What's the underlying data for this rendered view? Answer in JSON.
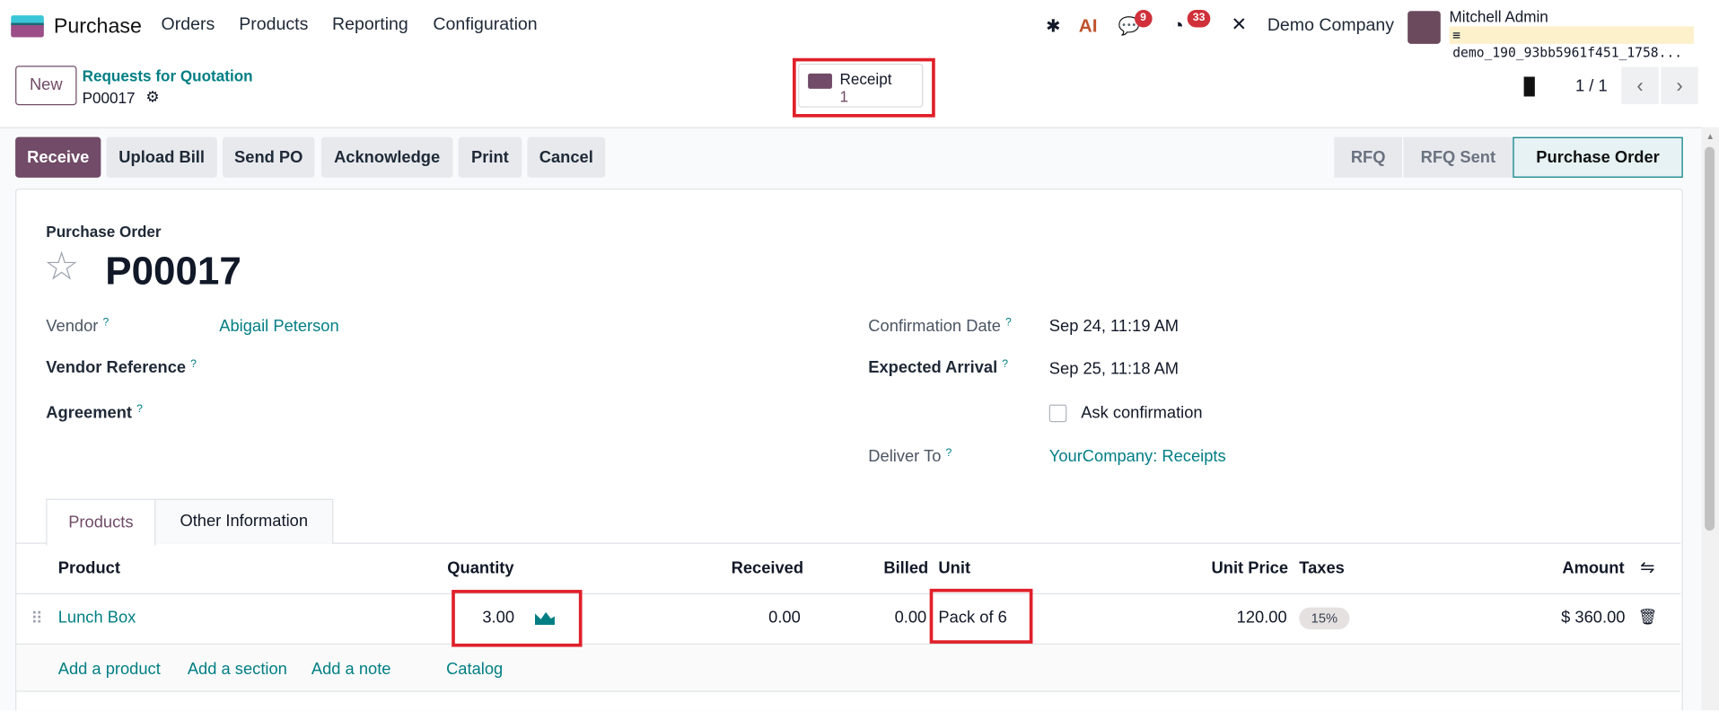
{
  "navbar": {
    "app_name": "Purchase",
    "menu": [
      "Orders",
      "Products",
      "Reporting",
      "Configuration"
    ],
    "messages_count": "9",
    "activities_count": "33",
    "ai_label": "AI",
    "company": "Demo Company",
    "user_name": "Mitchell Admin",
    "database": "demo_190_93bb5961f451_1758..."
  },
  "control": {
    "new_label": "New",
    "breadcrumb_parent": "Requests for Quotation",
    "breadcrumb_current": "P00017",
    "smart_button": {
      "label": "Receipt",
      "count": "1"
    },
    "pager": "1 / 1"
  },
  "actions": [
    "Receive",
    "Upload Bill",
    "Send PO",
    "Acknowledge",
    "Print",
    "Cancel"
  ],
  "statusbar": {
    "steps": [
      "RFQ",
      "RFQ Sent",
      "Purchase Order"
    ],
    "active": "Purchase Order"
  },
  "form": {
    "subtitle": "Purchase Order",
    "title": "P00017",
    "help": "?",
    "vendor_label": "Vendor",
    "vendor": "Abigail Peterson",
    "vendor_ref_label": "Vendor Reference",
    "agreement_label": "Agreement",
    "confirmation_label": "Confirmation Date",
    "confirmation": "Sep 24, 11:19 AM",
    "expected_label": "Expected Arrival",
    "expected": "Sep 25, 11:18 AM",
    "ask_confirmation": "Ask confirmation",
    "deliver_label": "Deliver To",
    "deliver": "YourCompany: Receipts"
  },
  "tabs": [
    "Products",
    "Other Information"
  ],
  "table": {
    "headers": [
      "Product",
      "Quantity",
      "Received",
      "Billed",
      "Unit",
      "Unit Price",
      "Taxes",
      "Amount"
    ],
    "rows": [
      {
        "product": "Lunch Box",
        "quantity": "3.00",
        "received": "0.00",
        "billed": "0.00",
        "unit": "Pack of 6",
        "unit_price": "120.00",
        "taxes": "15%",
        "amount": "$ 360.00"
      }
    ],
    "add_links": [
      "Add a product",
      "Add a section",
      "Add a note",
      "Catalog"
    ]
  },
  "colors": {
    "brand": "#714b67",
    "link": "#017e84",
    "highlight": "#e0202a"
  }
}
